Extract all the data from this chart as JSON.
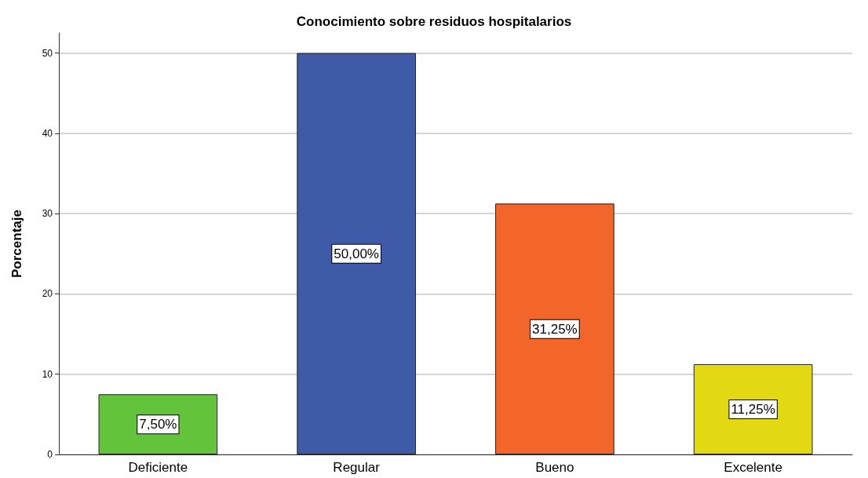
{
  "chart_data": {
    "type": "bar",
    "title": "Conocimiento sobre residuos hospitalarios",
    "ylabel": "Porcentaje",
    "categories": [
      "Deficiente",
      "Regular",
      "Bueno",
      "Excelente"
    ],
    "values": [
      7.5,
      50,
      31.25,
      11.25
    ],
    "colors": [
      "#63c33b",
      "#3f5ba8",
      "#f2662c",
      "#e3d913"
    ],
    "value_labels": [
      "7,50%",
      "50,00%",
      "31,25%",
      "11,25%"
    ],
    "ylim": [
      0,
      52.5
    ],
    "yticks": [
      0,
      10,
      20,
      30,
      40,
      50
    ],
    "grid": "y"
  }
}
